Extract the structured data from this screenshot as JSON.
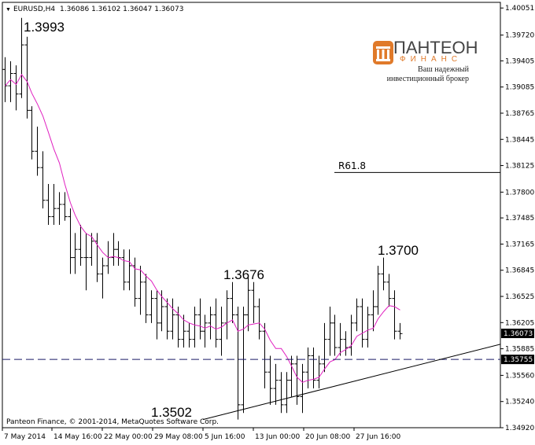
{
  "header": {
    "symbol": "EURUSD,H4",
    "quote": "1.36086 1.36102 1.36047 1.36073"
  },
  "logo": {
    "name": "ПАНТЕОН",
    "sub": "ФИНАНС",
    "line1": "Ваш надежный",
    "line2": "инвестиционный брокер",
    "accent_color": "#e07a2a"
  },
  "copyright": "Panteon Finance, © 2001-2014, MetaQuotes Software Corp.",
  "chart_data": {
    "type": "candlestick-bar",
    "ylim": [
      1.3492,
      1.4012
    ],
    "y_ticks": [
      "1.40051",
      "1.39720",
      "1.39405",
      "1.39085",
      "1.38765",
      "1.38445",
      "1.38125",
      "1.37800",
      "1.37485",
      "1.37165",
      "1.36845",
      "1.36525",
      "1.36205",
      "1.35885",
      "1.35560",
      "1.35240",
      "1.34920"
    ],
    "x_ticks": [
      "7 May 2014",
      "14 May 16:00",
      "22 May 00:00",
      "29 May 08:00",
      "5 Jun 16:00",
      "13 Jun 00:00",
      "20 Jun 08:00",
      "27 Jun 16:00"
    ],
    "current_price": "1.36073",
    "support_price": "1.35755",
    "support_value": 1.35755,
    "annotations": [
      {
        "label": "1.3993",
        "price": 1.3993
      },
      {
        "label": "1.3502",
        "price": 1.3502
      },
      {
        "label": "1.3676",
        "price": 1.3676
      },
      {
        "label": "1.3700",
        "price": 1.37
      },
      {
        "label": "R61.8",
        "price": 1.3804
      }
    ],
    "ma_color": "#e020c0",
    "bars": [
      [
        1.393,
        1.3945,
        1.389,
        1.391
      ],
      [
        1.391,
        1.394,
        1.389,
        1.3925
      ],
      [
        1.3925,
        1.3935,
        1.388,
        1.39
      ],
      [
        1.39,
        1.3993,
        1.3895,
        1.396
      ],
      [
        1.396,
        1.397,
        1.387,
        1.388
      ],
      [
        1.388,
        1.3885,
        1.382,
        1.383
      ],
      [
        1.383,
        1.386,
        1.38,
        1.381
      ],
      [
        1.381,
        1.383,
        1.376,
        1.377
      ],
      [
        1.377,
        1.379,
        1.374,
        1.375
      ],
      [
        1.375,
        1.379,
        1.374,
        1.376
      ],
      [
        1.376,
        1.378,
        1.374,
        1.3765
      ],
      [
        1.3765,
        1.378,
        1.3745,
        1.375
      ],
      [
        1.375,
        1.376,
        1.368,
        1.37
      ],
      [
        1.37,
        1.373,
        1.368,
        1.371
      ],
      [
        1.371,
        1.374,
        1.369,
        1.37
      ],
      [
        1.37,
        1.373,
        1.366,
        1.37
      ],
      [
        1.37,
        1.373,
        1.369,
        1.372
      ],
      [
        1.372,
        1.373,
        1.367,
        1.368
      ],
      [
        1.368,
        1.37,
        1.365,
        1.369
      ],
      [
        1.369,
        1.372,
        1.368,
        1.37
      ],
      [
        1.37,
        1.373,
        1.369,
        1.371
      ],
      [
        1.371,
        1.372,
        1.369,
        1.37
      ],
      [
        1.37,
        1.371,
        1.366,
        1.367
      ],
      [
        1.367,
        1.371,
        1.366,
        1.369
      ],
      [
        1.369,
        1.37,
        1.364,
        1.365
      ],
      [
        1.365,
        1.369,
        1.363,
        1.367
      ],
      [
        1.367,
        1.368,
        1.362,
        1.363
      ],
      [
        1.363,
        1.366,
        1.362,
        1.365
      ],
      [
        1.365,
        1.366,
        1.36,
        1.362
      ],
      [
        1.362,
        1.366,
        1.361,
        1.364
      ],
      [
        1.364,
        1.365,
        1.36,
        1.361
      ],
      [
        1.361,
        1.365,
        1.36,
        1.363
      ],
      [
        1.363,
        1.364,
        1.359,
        1.36
      ],
      [
        1.36,
        1.363,
        1.359,
        1.361
      ],
      [
        1.361,
        1.362,
        1.359,
        1.36
      ],
      [
        1.36,
        1.364,
        1.359,
        1.363
      ],
      [
        1.363,
        1.365,
        1.36,
        1.361
      ],
      [
        1.361,
        1.363,
        1.359,
        1.362
      ],
      [
        1.362,
        1.364,
        1.36,
        1.363
      ],
      [
        1.363,
        1.365,
        1.359,
        1.36
      ],
      [
        1.36,
        1.364,
        1.358,
        1.362
      ],
      [
        1.362,
        1.366,
        1.36,
        1.365
      ],
      [
        1.365,
        1.367,
        1.362,
        1.363
      ],
      [
        1.363,
        1.364,
        1.3502,
        1.352
      ],
      [
        1.352,
        1.364,
        1.351,
        1.363
      ],
      [
        1.363,
        1.3676,
        1.361,
        1.366
      ],
      [
        1.366,
        1.367,
        1.362,
        1.364
      ],
      [
        1.364,
        1.365,
        1.36,
        1.361
      ],
      [
        1.361,
        1.362,
        1.354,
        1.356
      ],
      [
        1.356,
        1.358,
        1.352,
        1.354
      ],
      [
        1.354,
        1.357,
        1.352,
        1.355
      ],
      [
        1.355,
        1.356,
        1.351,
        1.352
      ],
      [
        1.352,
        1.356,
        1.351,
        1.355
      ],
      [
        1.355,
        1.358,
        1.353,
        1.357
      ],
      [
        1.357,
        1.358,
        1.352,
        1.353
      ],
      [
        1.353,
        1.357,
        1.351,
        1.356
      ],
      [
        1.356,
        1.359,
        1.354,
        1.358
      ],
      [
        1.358,
        1.359,
        1.354,
        1.355
      ],
      [
        1.355,
        1.358,
        1.354,
        1.357
      ],
      [
        1.357,
        1.362,
        1.356,
        1.36
      ],
      [
        1.36,
        1.364,
        1.358,
        1.362
      ],
      [
        1.362,
        1.363,
        1.358,
        1.359
      ],
      [
        1.359,
        1.362,
        1.358,
        1.36
      ],
      [
        1.36,
        1.361,
        1.358,
        1.359
      ],
      [
        1.359,
        1.363,
        1.358,
        1.362
      ],
      [
        1.362,
        1.365,
        1.361,
        1.364
      ],
      [
        1.364,
        1.365,
        1.359,
        1.36
      ],
      [
        1.36,
        1.364,
        1.359,
        1.363
      ],
      [
        1.363,
        1.366,
        1.361,
        1.364
      ],
      [
        1.364,
        1.369,
        1.363,
        1.368
      ],
      [
        1.368,
        1.37,
        1.366,
        1.367
      ],
      [
        1.367,
        1.368,
        1.364,
        1.365
      ],
      [
        1.365,
        1.366,
        1.36,
        1.361
      ],
      [
        1.361,
        1.362,
        1.36,
        1.3607
      ]
    ]
  }
}
